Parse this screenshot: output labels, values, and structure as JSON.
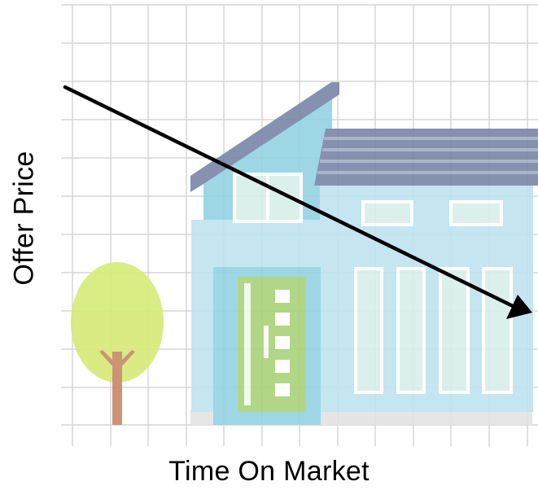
{
  "diagram": {
    "x_axis_label": "Time On Market",
    "y_axis_label": "Offer Price",
    "trend": "decreasing",
    "colors": {
      "grid": "#d6d6d6",
      "house_wall": "#bfe3ef",
      "house_wall_dark": "#93d3e4",
      "roof": "#7a86a8",
      "door": "#a9d37a",
      "tree_canopy": "#d7ea7a",
      "tree_trunk": "#c98a6a",
      "window_frame": "#ffffff",
      "window_glass": "#d9efe9",
      "ground": "#e3e3e3",
      "arrow": "#000000"
    },
    "icons": [
      "house-icon",
      "tree-icon",
      "trend-arrow-icon"
    ]
  }
}
